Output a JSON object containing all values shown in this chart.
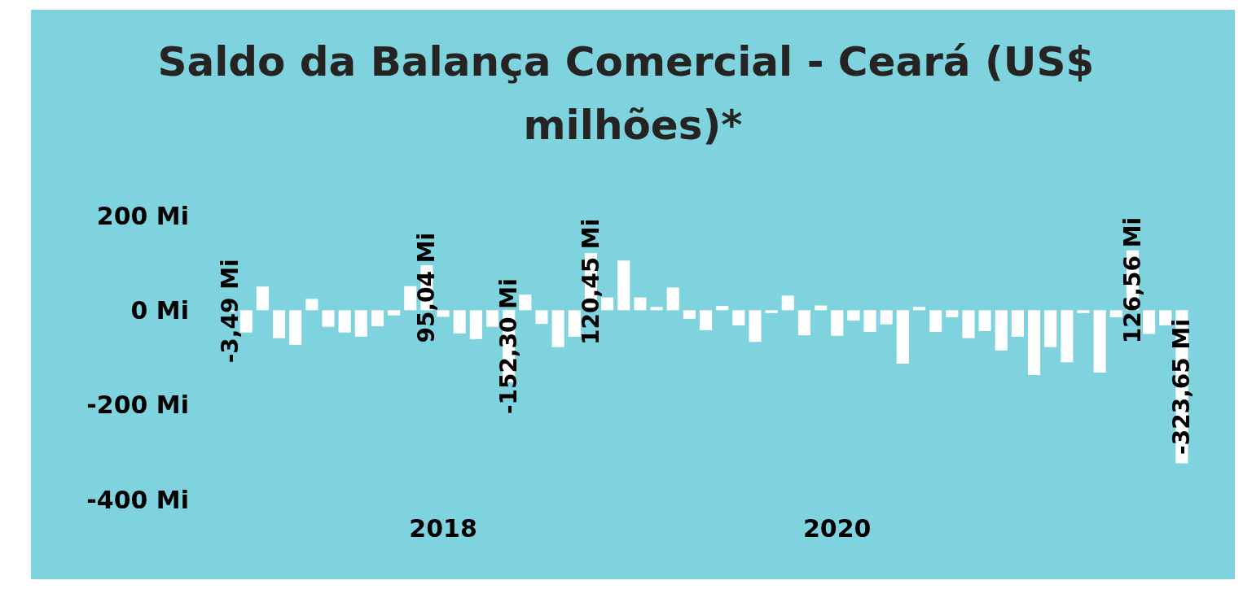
{
  "chart_data": {
    "type": "bar",
    "title": "Saldo da Balança Comercial - Ceará (US$ milhões)*",
    "categories": [
      null,
      null,
      null,
      null,
      null,
      null,
      null,
      null,
      null,
      null,
      null,
      null,
      null,
      "2018",
      null,
      null,
      null,
      null,
      null,
      null,
      null,
      null,
      null,
      null,
      null,
      null,
      null,
      null,
      null,
      null,
      null,
      null,
      null,
      null,
      null,
      null,
      null,
      "2020",
      null,
      null,
      null,
      null,
      null,
      null,
      null,
      null,
      null,
      null,
      null,
      null,
      null,
      null,
      null,
      null,
      null,
      null,
      null,
      null,
      null
    ],
    "values": [
      -3.49,
      -47,
      50,
      -59,
      -73,
      24,
      -35,
      -47,
      -56,
      -34,
      -11,
      51,
      95.04,
      -14,
      -49,
      -61,
      -35,
      -152.3,
      33,
      -29,
      -78,
      -56,
      120.45,
      27,
      105,
      27,
      7,
      48,
      -18,
      -42,
      9,
      -32,
      -67,
      -6,
      31,
      -53,
      10,
      -54,
      -22,
      -46,
      -30,
      -113,
      7,
      -46,
      -15,
      -59,
      -44,
      -85,
      -56,
      -137,
      -78,
      -110,
      -6,
      -132,
      -15,
      126.56,
      -50,
      -32,
      -323.65
    ],
    "value_labels": [
      "-3,49 Mi",
      null,
      null,
      null,
      null,
      null,
      null,
      null,
      null,
      null,
      null,
      null,
      "95,04 Mi",
      null,
      null,
      null,
      null,
      "-152,30 Mi",
      null,
      null,
      null,
      null,
      "120,45 Mi",
      null,
      null,
      null,
      null,
      null,
      null,
      null,
      null,
      null,
      null,
      null,
      null,
      null,
      null,
      null,
      null,
      null,
      null,
      null,
      null,
      null,
      null,
      null,
      null,
      null,
      null,
      null,
      null,
      null,
      null,
      null,
      null,
      "126,56 Mi",
      null,
      null,
      "-323,65 Mi"
    ],
    "color": "#ffffff",
    "ylim": [
      -400,
      200
    ],
    "yticks": [
      {
        "value": -400,
        "label": "-400 Mi"
      },
      {
        "value": -200,
        "label": "-200 Mi"
      },
      {
        "value": 0,
        "label": "0 Mi"
      },
      {
        "value": 200,
        "label": "200 Mi"
      }
    ],
    "grid": false
  }
}
